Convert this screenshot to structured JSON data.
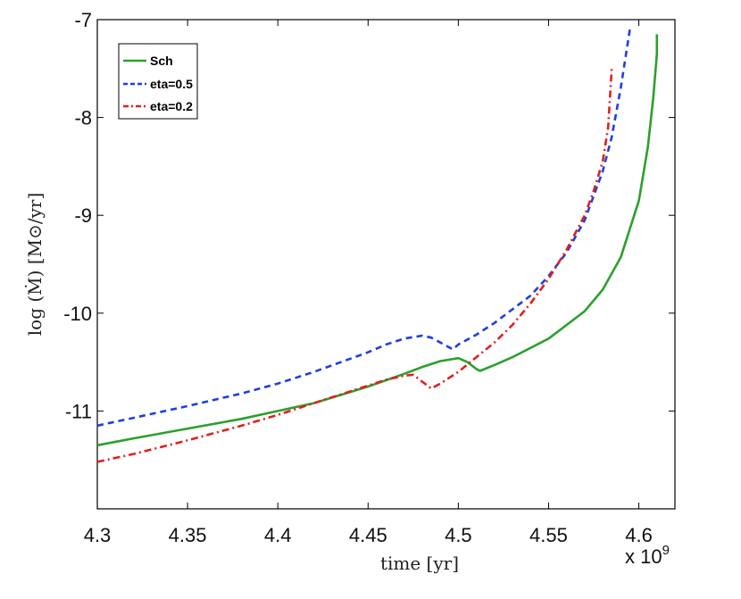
{
  "chart_data": {
    "type": "line",
    "xlabel": "time [yr]",
    "ylabel": "log (Ṁ) [M⊙/yr]",
    "x_multiplier": "x 10",
    "x_multiplier_exp": "9",
    "xlim": [
      4.3,
      4.62
    ],
    "ylim": [
      -12,
      -7
    ],
    "xticks": [
      "4.3",
      "4.35",
      "4.4",
      "4.45",
      "4.5",
      "4.55",
      "4.6"
    ],
    "yticks": [
      "-7",
      "-8",
      "-9",
      "-10",
      "-11"
    ],
    "series": [
      {
        "name": "Sch",
        "color": "#2ca02c",
        "style": "solid",
        "x": [
          4.3,
          4.32,
          4.35,
          4.38,
          4.4,
          4.42,
          4.45,
          4.47,
          4.48,
          4.49,
          4.5,
          4.505,
          4.51,
          4.512,
          4.52,
          4.53,
          4.55,
          4.57,
          4.58,
          4.59,
          4.6,
          4.605,
          4.608,
          4.61,
          4.61
        ],
        "y": [
          -11.35,
          -11.28,
          -11.18,
          -11.08,
          -11.0,
          -10.92,
          -10.75,
          -10.62,
          -10.55,
          -10.49,
          -10.46,
          -10.5,
          -10.57,
          -10.59,
          -10.53,
          -10.45,
          -10.26,
          -9.98,
          -9.76,
          -9.43,
          -8.85,
          -8.3,
          -7.8,
          -7.35,
          -7.15
        ]
      },
      {
        "name": "eta=0.5",
        "color": "#1f3fe0",
        "style": "dashed",
        "x": [
          4.3,
          4.32,
          4.35,
          4.38,
          4.4,
          4.42,
          4.45,
          4.46,
          4.47,
          4.48,
          4.485,
          4.49,
          4.495,
          4.497,
          4.5,
          4.51,
          4.52,
          4.54,
          4.55,
          4.56,
          4.57,
          4.58,
          4.585,
          4.59,
          4.595
        ],
        "y": [
          -11.15,
          -11.07,
          -10.95,
          -10.82,
          -10.72,
          -10.6,
          -10.4,
          -10.32,
          -10.26,
          -10.23,
          -10.25,
          -10.3,
          -10.35,
          -10.37,
          -10.32,
          -10.22,
          -10.1,
          -9.82,
          -9.62,
          -9.38,
          -9.05,
          -8.55,
          -8.2,
          -7.7,
          -7.1
        ]
      },
      {
        "name": "eta=0.2",
        "color": "#e0201f",
        "style": "dashdot",
        "x": [
          4.3,
          4.32,
          4.35,
          4.38,
          4.4,
          4.42,
          4.44,
          4.46,
          4.47,
          4.475,
          4.48,
          4.485,
          4.49,
          4.5,
          4.51,
          4.52,
          4.53,
          4.54,
          4.55,
          4.56,
          4.57,
          4.575,
          4.58,
          4.583,
          4.585
        ],
        "y": [
          -11.52,
          -11.44,
          -11.3,
          -11.15,
          -11.04,
          -10.92,
          -10.8,
          -10.68,
          -10.64,
          -10.63,
          -10.7,
          -10.77,
          -10.72,
          -10.6,
          -10.45,
          -10.3,
          -10.12,
          -9.9,
          -9.65,
          -9.35,
          -9.0,
          -8.75,
          -8.45,
          -8.1,
          -7.5
        ]
      }
    ],
    "legend": [
      "Sch",
      "eta=0.5",
      "eta=0.2"
    ],
    "legend_position": "top-left"
  }
}
